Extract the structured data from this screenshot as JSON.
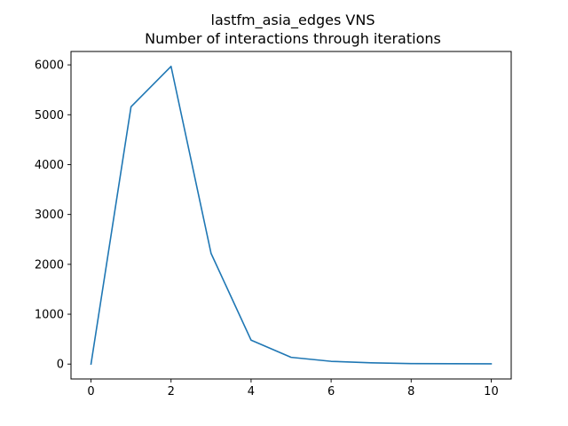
{
  "chart_data": {
    "type": "line",
    "title_lines": [
      "lastfm_asia_edges VNS",
      "Number of interactions through iterations"
    ],
    "xlabel": "",
    "ylabel": "",
    "x": [
      0,
      1,
      2,
      3,
      4,
      5,
      6,
      7,
      8,
      9,
      10
    ],
    "series": [
      {
        "values": [
          0,
          5160,
          5970,
          2220,
          480,
          135,
          55,
          25,
          10,
          8,
          5
        ],
        "color": "#1f77b4"
      }
    ],
    "xlim": [
      -0.5,
      10.5
    ],
    "ylim": [
      -298.5,
      6268.5
    ],
    "x_ticks": [
      0,
      2,
      4,
      6,
      8,
      10
    ],
    "x_tick_labels": [
      "0",
      "2",
      "4",
      "6",
      "8",
      "10"
    ],
    "y_ticks": [
      0,
      1000,
      2000,
      3000,
      4000,
      5000,
      6000
    ],
    "y_tick_labels": [
      "0",
      "1000",
      "2000",
      "3000",
      "4000",
      "5000",
      "6000"
    ],
    "grid": false,
    "legend": "none"
  }
}
